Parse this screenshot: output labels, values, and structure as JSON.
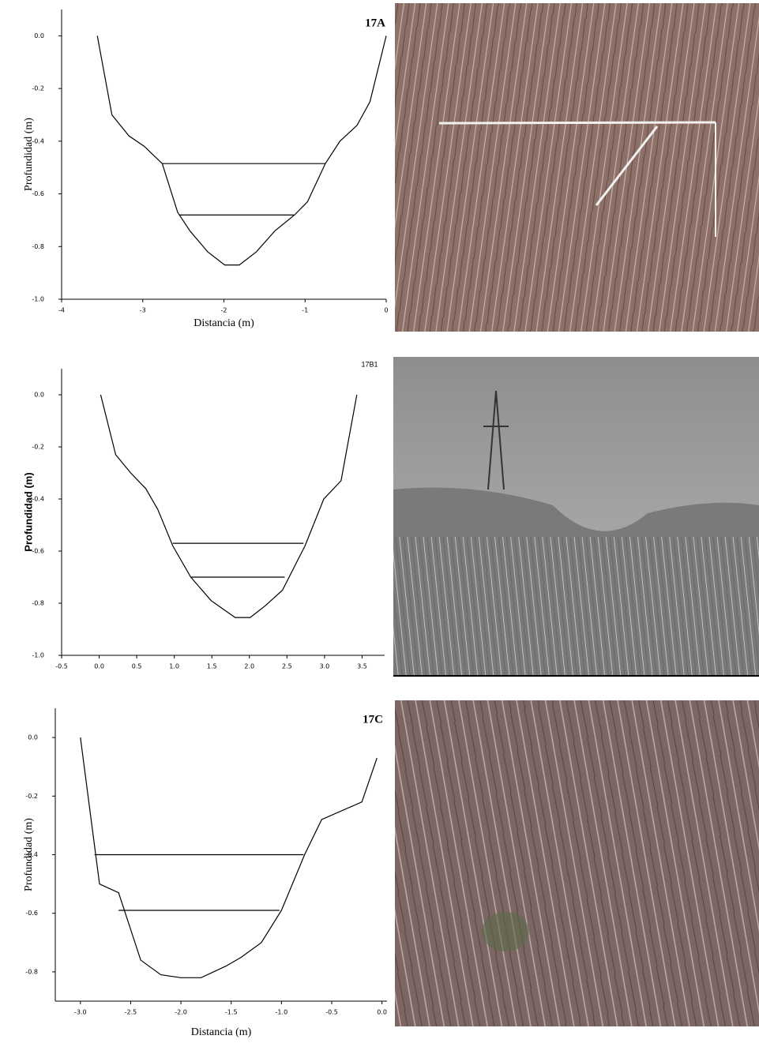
{
  "chart_data": [
    {
      "type": "line",
      "annotation": "17A",
      "xlabel": "Distancia (m)",
      "ylabel": "Profundidad (m)",
      "xlim": [
        -4,
        0
      ],
      "ylim": [
        -1,
        0.1
      ],
      "xticks": [
        -4,
        -3,
        -2,
        -1,
        0
      ],
      "yticks": [
        {
          "value": 0,
          "label": "0.0"
        },
        -0.2,
        -0.4,
        -0.6,
        -0.8,
        {
          "value": -1,
          "label": "-1.0"
        }
      ],
      "series": [
        {
          "color": "#000000",
          "x": [
            -3.56,
            -3.38,
            -3.17,
            -2.98,
            -2.76,
            -2.57,
            -2.42,
            -2.2,
            -1.99,
            -1.81,
            -1.6,
            -1.37,
            -1.13,
            -0.97,
            -0.75,
            -0.57,
            -0.36,
            -0.2,
            0
          ],
          "values": [
            0,
            -0.3,
            -0.38,
            -0.42,
            -0.485,
            -0.67,
            -0.74,
            -0.82,
            -0.87,
            -0.87,
            -0.82,
            -0.74,
            -0.68,
            -0.63,
            -0.485,
            -0.4,
            -0.34,
            -0.25,
            0
          ]
        },
        {
          "color": "#000000",
          "x": [
            -2.76,
            -0.75
          ],
          "values": [
            -0.485,
            -0.485
          ]
        },
        {
          "color": "#000000",
          "x": [
            -2.55,
            -1.14
          ],
          "values": [
            -0.68,
            -0.68
          ]
        }
      ]
    },
    {
      "type": "line",
      "annotation": "17B1",
      "ylabel": "Profundidad (m)",
      "xlim": [
        -0.5,
        3.8
      ],
      "ylim": [
        -1,
        0.1
      ],
      "xticks": [
        -0.5,
        {
          "value": 0,
          "label": "0.0"
        },
        0.5,
        {
          "value": 1,
          "label": "1.0"
        },
        1.5,
        {
          "value": 2,
          "label": "2.0"
        },
        2.5,
        {
          "value": 3,
          "label": "3.0"
        },
        3.5
      ],
      "yticks": [
        {
          "value": 0,
          "label": "0.0"
        },
        -0.2,
        -0.4,
        -0.6,
        -0.8,
        {
          "value": -1,
          "label": "-1.0"
        }
      ],
      "series": [
        {
          "color": "#000000",
          "x": [
            0.02,
            0.22,
            0.42,
            0.62,
            0.78,
            0.98,
            1.22,
            1.49,
            1.81,
            2.01,
            2.21,
            2.44,
            2.74,
            2.99,
            3.22,
            3.43
          ],
          "values": [
            0,
            -0.23,
            -0.3,
            -0.36,
            -0.44,
            -0.58,
            -0.7,
            -0.79,
            -0.855,
            -0.855,
            -0.81,
            -0.75,
            -0.58,
            -0.4,
            -0.33,
            0
          ]
        },
        {
          "color": "#000000",
          "x": [
            0.98,
            2.72
          ],
          "values": [
            -0.57,
            -0.57
          ]
        },
        {
          "color": "#000000",
          "x": [
            1.22,
            2.47
          ],
          "values": [
            -0.7,
            -0.7
          ]
        }
      ]
    },
    {
      "type": "line",
      "annotation": "17C",
      "xlabel": "Distancia (m)",
      "ylabel": "Profundidad (m)",
      "xlim": [
        -3.25,
        0.05
      ],
      "ylim": [
        -0.9,
        0.1
      ],
      "xticks": [
        {
          "value": -3,
          "label": "-3.0"
        },
        -2.5,
        {
          "value": -2,
          "label": "-2.0"
        },
        -1.5,
        {
          "value": -1,
          "label": "-1.0"
        },
        -0.5,
        {
          "value": 0,
          "label": "0.0"
        }
      ],
      "yticks": [
        {
          "value": 0,
          "label": "0.0"
        },
        -0.2,
        -0.4,
        -0.6,
        -0.8
      ],
      "series": [
        {
          "color": "#000000",
          "x": [
            -3.0,
            -2.81,
            -2.62,
            -2.4,
            -2.2,
            -2.0,
            -1.8,
            -1.55,
            -1.4,
            -1.2,
            -1.0,
            -0.77,
            -0.6,
            -0.2,
            -0.05
          ],
          "values": [
            0,
            -0.5,
            -0.53,
            -0.76,
            -0.81,
            -0.82,
            -0.82,
            -0.78,
            -0.75,
            -0.7,
            -0.59,
            -0.4,
            -0.28,
            -0.22,
            -0.07
          ]
        },
        {
          "color": "#000000",
          "x": [
            -2.86,
            -0.78
          ],
          "values": [
            -0.4,
            -0.4
          ]
        },
        {
          "color": "#000000",
          "x": [
            -2.62,
            -1.02
          ],
          "values": [
            -0.59,
            -0.59
          ]
        }
      ]
    }
  ]
}
